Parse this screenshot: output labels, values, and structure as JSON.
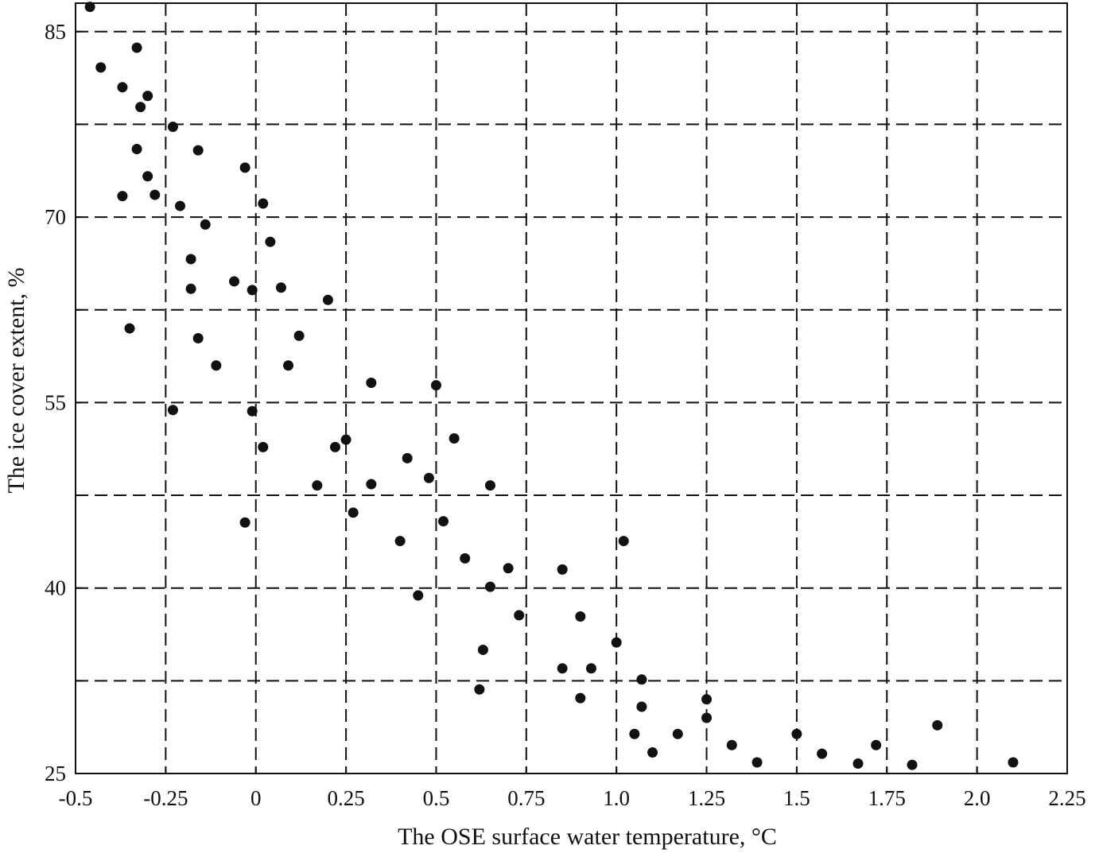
{
  "chart_data": {
    "type": "scatter",
    "title": "",
    "xlabel": "The OSE surface water temperature, °C",
    "ylabel": "The ice cover extent, %",
    "xlim": [
      -0.5,
      2.25
    ],
    "ylim": [
      25,
      87.3
    ],
    "x_ticks": [
      "-0.5",
      "-0.25",
      "0",
      "0.25",
      "0.5",
      "0.75",
      "1.0",
      "1.25",
      "1.5",
      "1.75",
      "2.0",
      "2.25"
    ],
    "y_ticks": [
      "25",
      "40",
      "55",
      "70",
      "85"
    ],
    "grid": true,
    "points": [
      [
        -0.46,
        87.0
      ],
      [
        -0.43,
        82.1
      ],
      [
        -0.37,
        80.5
      ],
      [
        -0.33,
        83.7
      ],
      [
        -0.3,
        79.8
      ],
      [
        -0.32,
        78.9
      ],
      [
        -0.23,
        77.3
      ],
      [
        -0.16,
        75.4
      ],
      [
        -0.33,
        75.5
      ],
      [
        -0.3,
        73.3
      ],
      [
        -0.37,
        71.7
      ],
      [
        -0.28,
        71.8
      ],
      [
        -0.21,
        70.9
      ],
      [
        -0.14,
        69.4
      ],
      [
        -0.03,
        74.0
      ],
      [
        0.02,
        71.1
      ],
      [
        0.04,
        68.0
      ],
      [
        -0.18,
        66.6
      ],
      [
        -0.18,
        64.2
      ],
      [
        -0.06,
        64.8
      ],
      [
        -0.01,
        64.1
      ],
      [
        0.07,
        64.3
      ],
      [
        0.2,
        63.3
      ],
      [
        -0.35,
        61.0
      ],
      [
        -0.16,
        60.2
      ],
      [
        0.12,
        60.4
      ],
      [
        -0.11,
        58.0
      ],
      [
        0.09,
        58.0
      ],
      [
        0.32,
        56.6
      ],
      [
        0.5,
        56.4
      ],
      [
        -0.23,
        54.4
      ],
      [
        -0.01,
        54.3
      ],
      [
        0.02,
        51.4
      ],
      [
        0.22,
        51.4
      ],
      [
        0.25,
        52.0
      ],
      [
        0.55,
        52.1
      ],
      [
        0.42,
        50.5
      ],
      [
        0.48,
        48.9
      ],
      [
        0.17,
        48.3
      ],
      [
        0.32,
        48.4
      ],
      [
        0.65,
        48.3
      ],
      [
        -0.03,
        45.3
      ],
      [
        0.27,
        46.1
      ],
      [
        0.52,
        45.4
      ],
      [
        0.4,
        43.8
      ],
      [
        1.02,
        43.8
      ],
      [
        0.58,
        42.4
      ],
      [
        0.7,
        41.6
      ],
      [
        0.85,
        41.5
      ],
      [
        0.65,
        40.1
      ],
      [
        0.45,
        39.4
      ],
      [
        0.73,
        37.8
      ],
      [
        0.9,
        37.7
      ],
      [
        1.0,
        35.6
      ],
      [
        0.63,
        35.0
      ],
      [
        0.85,
        33.5
      ],
      [
        0.93,
        33.5
      ],
      [
        1.07,
        32.6
      ],
      [
        0.62,
        31.8
      ],
      [
        0.9,
        31.1
      ],
      [
        1.25,
        31.0
      ],
      [
        1.07,
        30.4
      ],
      [
        1.25,
        29.5
      ],
      [
        1.89,
        28.9
      ],
      [
        1.05,
        28.2
      ],
      [
        1.17,
        28.2
      ],
      [
        1.5,
        28.2
      ],
      [
        1.32,
        27.3
      ],
      [
        1.72,
        27.3
      ],
      [
        1.1,
        26.7
      ],
      [
        1.57,
        26.6
      ],
      [
        1.39,
        25.9
      ],
      [
        1.67,
        25.8
      ],
      [
        1.82,
        25.7
      ],
      [
        2.1,
        25.9
      ]
    ]
  }
}
